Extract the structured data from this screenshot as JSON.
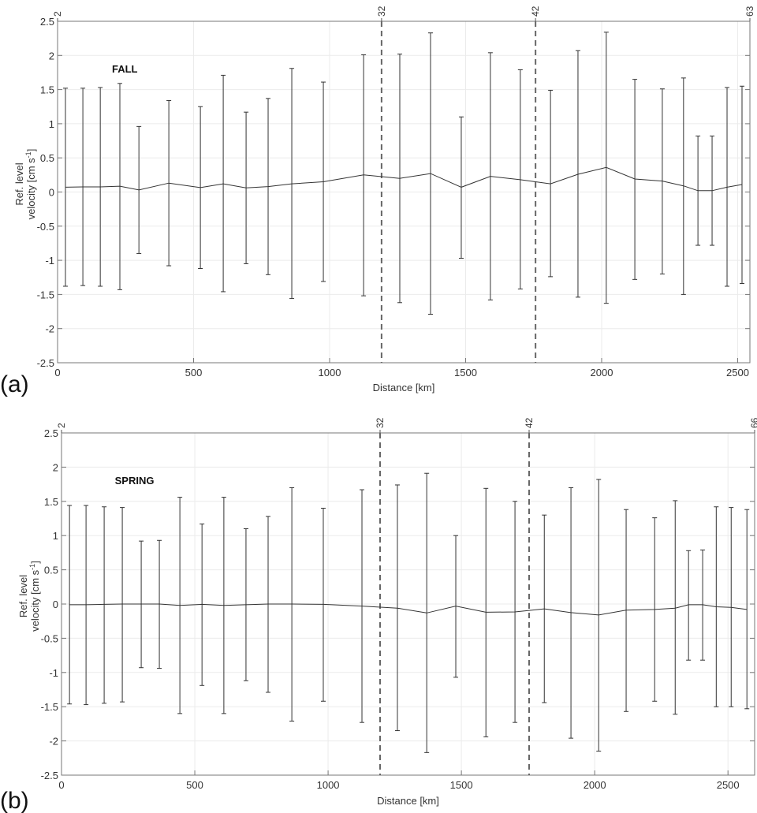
{
  "chart_data": [
    {
      "type": "line",
      "panel_label": "(a)",
      "annotation": "FALL",
      "xlabel": "Distance [km]",
      "ylabel_lines": [
        "Ref. level",
        "velocity [cm s",
        "-1",
        "]"
      ],
      "xlim": [
        0,
        2545
      ],
      "ylim": [
        -2.5,
        2.5
      ],
      "grid": true,
      "xticks": [
        0,
        500,
        1000,
        1500,
        2000,
        2500
      ],
      "yticks": [
        -2.5,
        -2,
        -1.5,
        -1,
        -0.5,
        0,
        0.5,
        1,
        1.5,
        2,
        2.5
      ],
      "top_ticks": [
        {
          "x": 0,
          "label": "2"
        },
        {
          "x": 1191,
          "label": "32"
        },
        {
          "x": 1757,
          "label": "42"
        },
        {
          "x": 2545,
          "label": "63"
        }
      ],
      "dashed_lines_x": [
        1191,
        1757
      ],
      "x": [
        29,
        93,
        157,
        229,
        299,
        409,
        525,
        609,
        693,
        774,
        861,
        977,
        1125,
        1258,
        1371,
        1484,
        1591,
        1701,
        1812,
        1913,
        2017,
        2122,
        2223,
        2301,
        2354,
        2406,
        2461,
        2516
      ],
      "mean": [
        0.07,
        0.075,
        0.075,
        0.085,
        0.03,
        0.13,
        0.065,
        0.12,
        0.06,
        0.08,
        0.12,
        0.15,
        0.25,
        0.2,
        0.27,
        0.07,
        0.23,
        0.18,
        0.12,
        0.26,
        0.36,
        0.19,
        0.16,
        0.09,
        0.02,
        0.02,
        0.07,
        0.11
      ],
      "upper": [
        1.52,
        1.52,
        1.53,
        1.59,
        0.96,
        1.34,
        1.25,
        1.71,
        1.17,
        1.37,
        1.81,
        1.61,
        2.01,
        2.02,
        2.33,
        1.1,
        2.04,
        1.79,
        1.49,
        2.07,
        2.34,
        1.65,
        1.51,
        1.67,
        0.82,
        0.82,
        1.53,
        1.55
      ],
      "lower": [
        -1.38,
        -1.37,
        -1.38,
        -1.43,
        -0.9,
        -1.08,
        -1.12,
        -1.46,
        -1.05,
        -1.21,
        -1.56,
        -1.31,
        -1.52,
        -1.62,
        -1.79,
        -0.97,
        -1.58,
        -1.42,
        -1.24,
        -1.54,
        -1.63,
        -1.28,
        -1.2,
        -1.5,
        -0.78,
        -0.78,
        -1.38,
        -1.34
      ]
    },
    {
      "type": "line",
      "panel_label": "(b)",
      "annotation": "SPRING",
      "xlabel": "Distance [km]",
      "ylabel_lines": [
        "Ref. level",
        "velocity [cm s",
        "-1",
        "]"
      ],
      "xlim": [
        0,
        2600
      ],
      "ylim": [
        -2.5,
        2.5
      ],
      "grid": true,
      "xticks": [
        0,
        500,
        1000,
        1500,
        2000,
        2500
      ],
      "yticks": [
        -2.5,
        -2,
        -1.5,
        -1,
        -0.5,
        0,
        0.5,
        1,
        1.5,
        2,
        2.5
      ],
      "top_ticks": [
        {
          "x": 0,
          "label": "2"
        },
        {
          "x": 1195,
          "label": "32"
        },
        {
          "x": 1754,
          "label": "42"
        },
        {
          "x": 2600,
          "label": "66"
        }
      ],
      "dashed_lines_x": [
        1195,
        1754
      ],
      "x": [
        30,
        92,
        160,
        228,
        299,
        367,
        444,
        527,
        609,
        692,
        775,
        864,
        982,
        1127,
        1260,
        1370,
        1479,
        1592,
        1701,
        1811,
        1911,
        2015,
        2118,
        2225,
        2302,
        2352,
        2405,
        2456,
        2512,
        2571
      ],
      "mean": [
        -0.01,
        -0.01,
        -0.005,
        0,
        0,
        0,
        -0.02,
        -0.005,
        -0.02,
        -0.01,
        0,
        0,
        -0.005,
        -0.03,
        -0.06,
        -0.13,
        -0.03,
        -0.12,
        -0.115,
        -0.07,
        -0.125,
        -0.16,
        -0.09,
        -0.08,
        -0.06,
        -0.01,
        -0.01,
        -0.04,
        -0.05,
        -0.08
      ],
      "upper": [
        1.44,
        1.44,
        1.42,
        1.41,
        0.92,
        0.93,
        1.56,
        1.17,
        1.56,
        1.1,
        1.28,
        1.7,
        1.4,
        1.67,
        1.74,
        1.91,
        1.0,
        1.69,
        1.5,
        1.3,
        1.7,
        1.82,
        1.38,
        1.26,
        1.51,
        0.78,
        0.79,
        1.42,
        1.41,
        1.38
      ],
      "lower": [
        -1.46,
        -1.47,
        -1.45,
        -1.43,
        -0.93,
        -0.94,
        -1.6,
        -1.19,
        -1.6,
        -1.12,
        -1.29,
        -1.71,
        -1.42,
        -1.73,
        -1.85,
        -2.17,
        -1.07,
        -1.94,
        -1.73,
        -1.44,
        -1.96,
        -2.15,
        -1.57,
        -1.42,
        -1.61,
        -0.82,
        -0.82,
        -1.5,
        -1.5,
        -1.53
      ]
    }
  ]
}
